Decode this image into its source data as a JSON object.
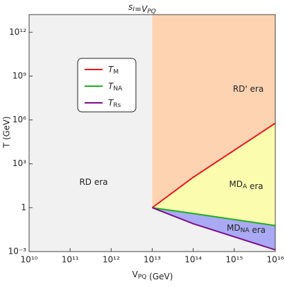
{
  "chart_data": {
    "type": "line",
    "title": [
      {
        "text": "s",
        "sub": "I"
      },
      {
        "text": "=V",
        "sub": "PQ"
      }
    ],
    "x_label": [
      {
        "text": "V",
        "sub": "PQ"
      },
      {
        "text": " (GeV)"
      }
    ],
    "y_label": "T (GeV)",
    "log_x": true,
    "log_y": true,
    "xlim": [
      10000000000.0,
      1e+16
    ],
    "ylim": [
      0.001,
      16000000000000.0
    ],
    "xticks": [
      {
        "value": 10000000000.0,
        "label": "10¹⁰"
      },
      {
        "value": 100000000000.0,
        "label": "10¹¹"
      },
      {
        "value": 1000000000000.0,
        "label": "10¹²"
      },
      {
        "value": 10000000000000.0,
        "label": "10¹³"
      },
      {
        "value": 100000000000000.0,
        "label": "10¹⁴"
      },
      {
        "value": 1000000000000000.0,
        "label": "10¹⁵"
      },
      {
        "value": 1e+16,
        "label": "10¹⁶"
      }
    ],
    "yticks": [
      {
        "value": 0.001,
        "label": "10⁻³"
      },
      1,
      {
        "value": 1000,
        "label": "10³"
      },
      {
        "value": 1000000.0,
        "label": "10⁶"
      },
      {
        "value": 1000000000.0,
        "label": "10⁹"
      },
      {
        "value": 1000000000000.0,
        "label": "10¹²"
      }
    ],
    "x": [
      10000000000000.0,
      100000000000000.0,
      1e+16
    ],
    "series": [
      {
        "name": "T",
        "sub": "M",
        "color": "#e8161b",
        "values": [
          1,
          120,
          600000
        ]
      },
      {
        "name": "T",
        "sub": "NA",
        "color": "#1fae1f",
        "values": [
          1,
          0.4,
          0.06
        ]
      },
      {
        "name": "T",
        "sub": "Rs",
        "color": "#7b0e84",
        "values": [
          1,
          0.08,
          0.0013
        ]
      }
    ],
    "regions": [
      {
        "parts": [
          {
            "text": "RD era"
          }
        ],
        "color": "#f1f1f1"
      },
      {
        "parts": [
          {
            "text": "RD' era"
          }
        ],
        "color": "#fdd3b2"
      },
      {
        "parts": [
          {
            "text": "MD",
            "sub": "A"
          },
          {
            "text": " era"
          }
        ],
        "color": "#fcfcae"
      },
      {
        "parts": [
          {
            "text": "MD",
            "sub": "NA"
          },
          {
            "text": " era"
          }
        ],
        "color": "#a9a9f4"
      }
    ],
    "legend": "upper left"
  }
}
